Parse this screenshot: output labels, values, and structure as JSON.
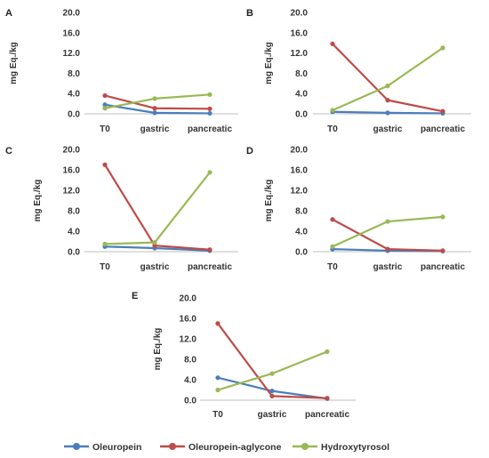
{
  "colors": {
    "Oleuropein": "#4a7ebb",
    "Oleuropein-aglycone": "#be4b48",
    "Hydroxytyrosol": "#98b954"
  },
  "legend": [
    {
      "name": "Oleuropein"
    },
    {
      "name": "Oleuropein-aglycone"
    },
    {
      "name": "Hydroxytyrosol"
    }
  ],
  "chart_data": [
    {
      "type": "line",
      "panel": "A",
      "categories": [
        "T0",
        "gastric",
        "pancreatic"
      ],
      "ylabel": "mg Eq./kg",
      "ylim": [
        0,
        20
      ],
      "yticks": [
        "0.0",
        "4.0",
        "8.0",
        "12.0",
        "16.0",
        "20.0"
      ],
      "series": [
        {
          "name": "Oleuropein",
          "values": [
            1.8,
            0.2,
            0.1
          ]
        },
        {
          "name": "Oleuropein-aglycone",
          "values": [
            3.6,
            1.1,
            1.0
          ]
        },
        {
          "name": "Hydroxytyrosol",
          "values": [
            1.1,
            3.0,
            3.8
          ]
        }
      ]
    },
    {
      "type": "line",
      "panel": "B",
      "categories": [
        "T0",
        "gastric",
        "pancreatic"
      ],
      "ylabel": "mg Eq./kg",
      "ylim": [
        0,
        20
      ],
      "yticks": [
        "0.0",
        "4.0",
        "8.0",
        "12.0",
        "16.0",
        "20.0"
      ],
      "series": [
        {
          "name": "Oleuropein",
          "values": [
            0.4,
            0.2,
            0.1
          ]
        },
        {
          "name": "Oleuropein-aglycone",
          "values": [
            13.8,
            2.7,
            0.5
          ]
        },
        {
          "name": "Hydroxytyrosol",
          "values": [
            0.7,
            5.5,
            13.0
          ]
        }
      ]
    },
    {
      "type": "line",
      "panel": "C",
      "categories": [
        "T0",
        "gastric",
        "pancreatic"
      ],
      "ylabel": "mg Eq./kg",
      "ylim": [
        0,
        20
      ],
      "yticks": [
        "0.0",
        "4.0",
        "8.0",
        "12.0",
        "16.0",
        "20.0"
      ],
      "series": [
        {
          "name": "Oleuropein",
          "values": [
            1.0,
            0.7,
            0.2
          ]
        },
        {
          "name": "Oleuropein-aglycone",
          "values": [
            17.0,
            1.2,
            0.4
          ]
        },
        {
          "name": "Hydroxytyrosol",
          "values": [
            1.5,
            1.8,
            15.5
          ]
        }
      ]
    },
    {
      "type": "line",
      "panel": "D",
      "categories": [
        "T0",
        "gastric",
        "pancreatic"
      ],
      "ylabel": "mg Eq./kg",
      "ylim": [
        0,
        20
      ],
      "yticks": [
        "0.0",
        "4.0",
        "8.0",
        "12.0",
        "16.0",
        "20.0"
      ],
      "series": [
        {
          "name": "Oleuropein",
          "values": [
            0.5,
            0.2,
            0.1
          ]
        },
        {
          "name": "Oleuropein-aglycone",
          "values": [
            6.3,
            0.5,
            0.2
          ]
        },
        {
          "name": "Hydroxytyrosol",
          "values": [
            1.0,
            5.9,
            6.8
          ]
        }
      ]
    },
    {
      "type": "line",
      "panel": "E",
      "categories": [
        "T0",
        "gastric",
        "pancreatic"
      ],
      "ylabel": "mg Eq./kg",
      "ylim": [
        0,
        20
      ],
      "yticks": [
        "0.0",
        "4.0",
        "8.0",
        "12.0",
        "16.0",
        "20.0"
      ],
      "series": [
        {
          "name": "Oleuropein",
          "values": [
            4.4,
            1.8,
            0.3
          ]
        },
        {
          "name": "Oleuropein-aglycone",
          "values": [
            15.0,
            0.8,
            0.4
          ]
        },
        {
          "name": "Hydroxytyrosol",
          "values": [
            2.0,
            5.2,
            9.5
          ]
        }
      ]
    }
  ]
}
